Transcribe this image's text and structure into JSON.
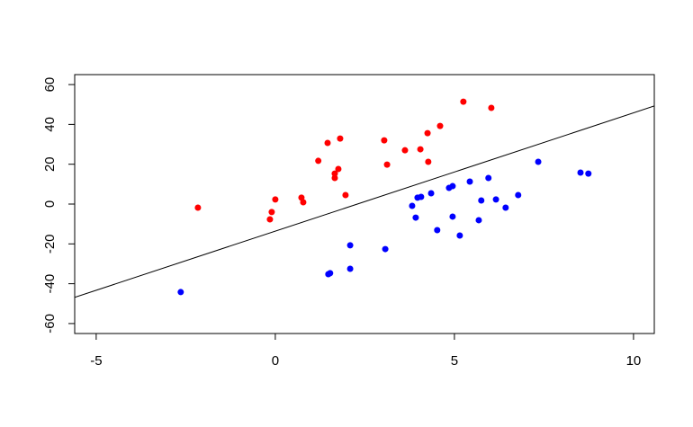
{
  "chart_data": {
    "type": "scatter",
    "xlim": [
      -5.6,
      10.58
    ],
    "ylim": [
      -65,
      65
    ],
    "xticks": [
      -5,
      0,
      5,
      10
    ],
    "yticks": [
      -60,
      -40,
      -20,
      0,
      20,
      40,
      60
    ],
    "line": {
      "intercept": -13.6,
      "slope": 5.94,
      "color": "#000000"
    },
    "series": [
      {
        "color": "#ff0000",
        "x": [
          -2.16,
          -0.1,
          -0.15,
          0,
          0.73,
          0.78,
          1.2,
          1.46,
          1.81,
          1.66,
          1.76,
          1.66,
          1.96,
          3.04,
          3.12,
          3.62,
          4.05,
          4.25,
          4.27,
          4.6,
          5.25,
          6.03
        ],
        "values": [
          -1.8,
          -4,
          -7.7,
          2.3,
          3.2,
          0.9,
          21.7,
          30.7,
          32.9,
          15.3,
          17.6,
          13.1,
          4.5,
          32,
          19.8,
          27,
          27.5,
          35.6,
          21.2,
          39.2,
          51.4,
          48.3
        ]
      },
      {
        "color": "#0000ff",
        "x": [
          -2.64,
          1.48,
          1.53,
          2.09,
          2.09,
          3.07,
          3.82,
          3.92,
          3.97,
          4.07,
          4.35,
          4.52,
          4.85,
          4.95,
          4.95,
          5.15,
          5.43,
          5.68,
          5.75,
          5.95,
          6.16,
          6.43,
          6.78,
          7.34,
          8.52,
          8.74
        ],
        "values": [
          -44.2,
          -35.2,
          -34.7,
          -20.7,
          -32.5,
          -22.6,
          -0.9,
          -6.8,
          3.2,
          3.6,
          5.4,
          -13.1,
          8.1,
          9,
          -6.3,
          -15.8,
          11.3,
          -8.1,
          1.8,
          13.1,
          2.3,
          -1.8,
          4.5,
          21.2,
          15.8,
          15.3
        ]
      }
    ]
  }
}
